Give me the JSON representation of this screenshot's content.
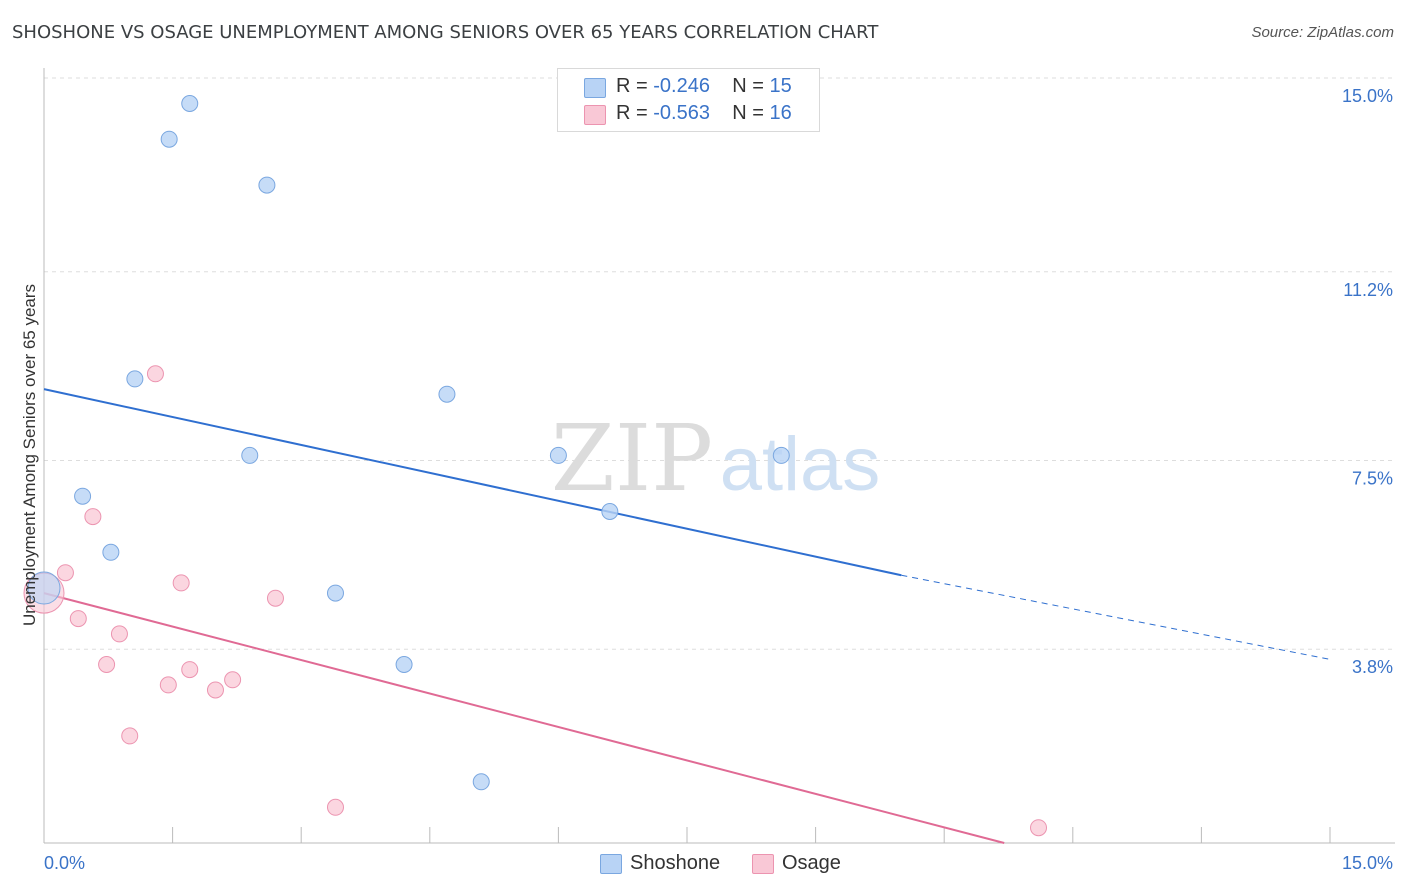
{
  "title": "SHOSHONE VS OSAGE UNEMPLOYMENT AMONG SENIORS OVER 65 YEARS CORRELATION CHART",
  "source": "Source: ZipAtlas.com",
  "watermark": {
    "zip": "ZIP",
    "atlas": "atlas"
  },
  "legend": {
    "r_label": "R =",
    "n_label": "N =",
    "rows": [
      {
        "r": "-0.246",
        "n": "15"
      },
      {
        "r": "-0.563",
        "n": "16"
      }
    ]
  },
  "bottom_legend": [
    "Shoshone",
    "Osage"
  ],
  "colors": {
    "shoshone_fill": "#b8d3f5",
    "shoshone_stroke": "#7aa7e0",
    "shoshone_line": "#2f6fd0",
    "osage_fill": "#f9c8d6",
    "osage_stroke": "#ec94b0",
    "osage_line": "#e06a94",
    "tick_label": "#3a73c8"
  },
  "chart_data": {
    "type": "scatter",
    "title": "SHOSHONE VS OSAGE UNEMPLOYMENT AMONG SENIORS OVER 65 YEARS CORRELATION CHART",
    "xlabel": "",
    "ylabel": "Unemployment Among Seniors over 65 years",
    "xlim": [
      0,
      15
    ],
    "ylim": [
      0,
      15
    ],
    "x_tick_labels": [
      "0.0%",
      "15.0%"
    ],
    "y_ticks": [
      3.8,
      7.5,
      11.2,
      15.0
    ],
    "y_tick_labels": [
      "3.8%",
      "7.5%",
      "11.2%",
      "15.0%"
    ],
    "grid": true,
    "legend_position": "top-center",
    "series": [
      {
        "name": "Shoshone",
        "points": [
          [
            0.0,
            5.0
          ],
          [
            0.45,
            6.8
          ],
          [
            0.78,
            5.7
          ],
          [
            1.06,
            9.1
          ],
          [
            1.46,
            13.8
          ],
          [
            1.7,
            14.5
          ],
          [
            2.4,
            7.6
          ],
          [
            2.6,
            12.9
          ],
          [
            3.4,
            4.9
          ],
          [
            4.2,
            3.5
          ],
          [
            4.7,
            8.8
          ],
          [
            5.1,
            1.2
          ],
          [
            6.0,
            7.6
          ],
          [
            6.6,
            6.5
          ],
          [
            8.6,
            7.6
          ]
        ],
        "trend": {
          "x": [
            0.0,
            10.0
          ],
          "y": [
            8.9,
            5.25
          ],
          "dashed_to": [
            15.0,
            3.6
          ]
        }
      },
      {
        "name": "Osage",
        "points": [
          [
            0.0,
            4.9
          ],
          [
            0.25,
            5.3
          ],
          [
            0.4,
            4.4
          ],
          [
            0.57,
            6.4
          ],
          [
            0.73,
            3.5
          ],
          [
            0.88,
            4.1
          ],
          [
            1.0,
            2.1
          ],
          [
            1.3,
            9.2
          ],
          [
            1.45,
            3.1
          ],
          [
            1.6,
            5.1
          ],
          [
            1.7,
            3.4
          ],
          [
            2.0,
            3.0
          ],
          [
            2.2,
            3.2
          ],
          [
            2.7,
            4.8
          ],
          [
            3.4,
            0.7
          ],
          [
            11.6,
            0.3
          ]
        ],
        "trend": {
          "x": [
            0.0,
            11.2
          ],
          "y": [
            4.9,
            0.0
          ]
        }
      }
    ]
  }
}
